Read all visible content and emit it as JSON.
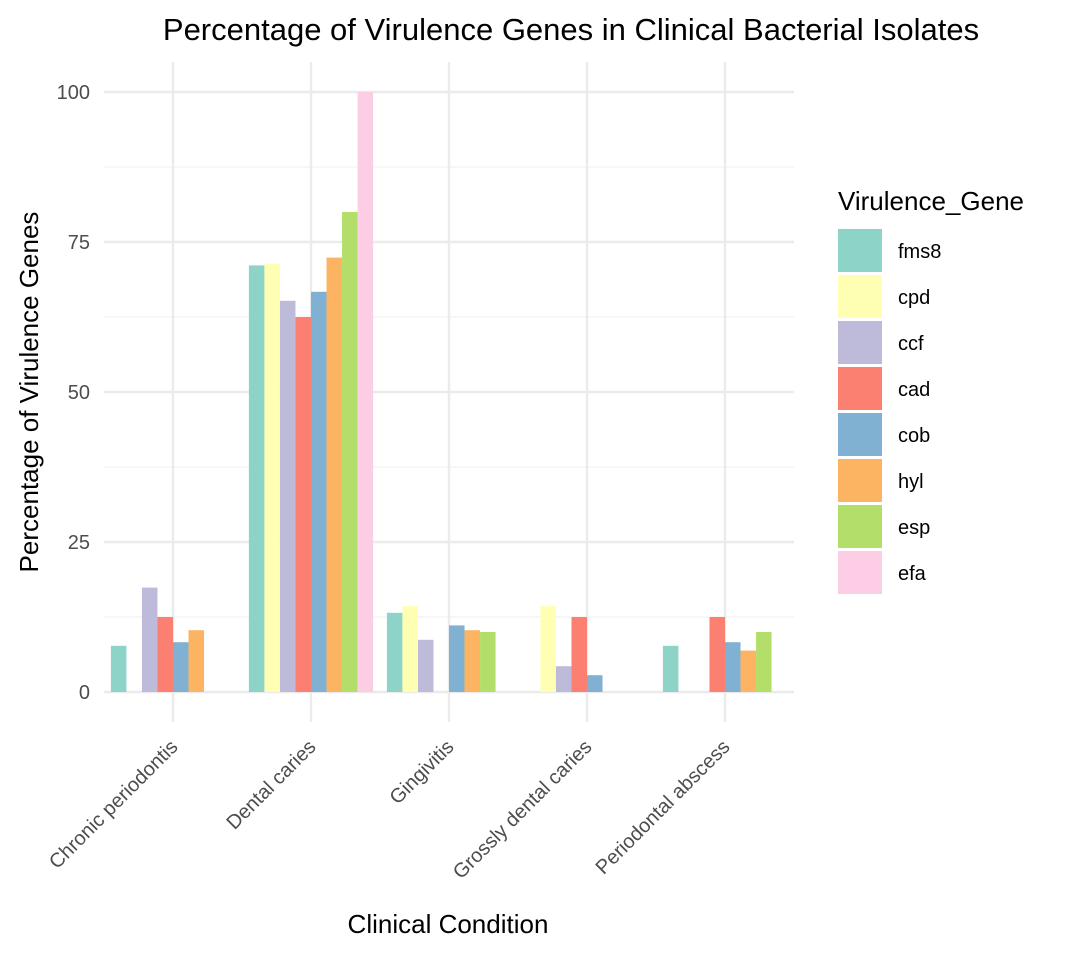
{
  "chart_data": {
    "type": "bar",
    "title": "Percentage of Virulence Genes in Clinical Bacterial Isolates",
    "xlabel": "Clinical Condition",
    "ylabel": "Percentage of Virulence Genes",
    "ylim": [
      -5,
      105
    ],
    "yticks": [
      0,
      25,
      50,
      75,
      100
    ],
    "grid": true,
    "legend_title": "Virulence_Gene",
    "legend_position": "right",
    "categories": [
      "Chronic periodontis",
      "Dental caries",
      "Gingivitis",
      "Grossly dental caries",
      "Periodontal abscess"
    ],
    "series": [
      {
        "name": "fms8",
        "color": "#8dd3c7",
        "values": [
          7.7,
          71.1,
          13.2,
          null,
          7.7
        ]
      },
      {
        "name": "cpd",
        "color": "#ffffb3",
        "values": [
          null,
          71.4,
          14.3,
          14.3,
          null
        ]
      },
      {
        "name": "ccf",
        "color": "#bebada",
        "values": [
          17.4,
          65.2,
          8.7,
          4.3,
          null
        ]
      },
      {
        "name": "cad",
        "color": "#fb8072",
        "values": [
          12.5,
          62.5,
          null,
          12.5,
          12.5
        ]
      },
      {
        "name": "cob",
        "color": "#80b1d3",
        "values": [
          8.3,
          66.7,
          11.1,
          2.8,
          8.3
        ]
      },
      {
        "name": "hyl",
        "color": "#fdb462",
        "values": [
          10.3,
          72.4,
          10.3,
          null,
          6.9
        ]
      },
      {
        "name": "esp",
        "color": "#b3de69",
        "values": [
          null,
          80.0,
          10.0,
          null,
          10.0
        ]
      },
      {
        "name": "efa",
        "color": "#fccde5",
        "values": [
          null,
          100.0,
          null,
          null,
          null
        ]
      }
    ]
  }
}
